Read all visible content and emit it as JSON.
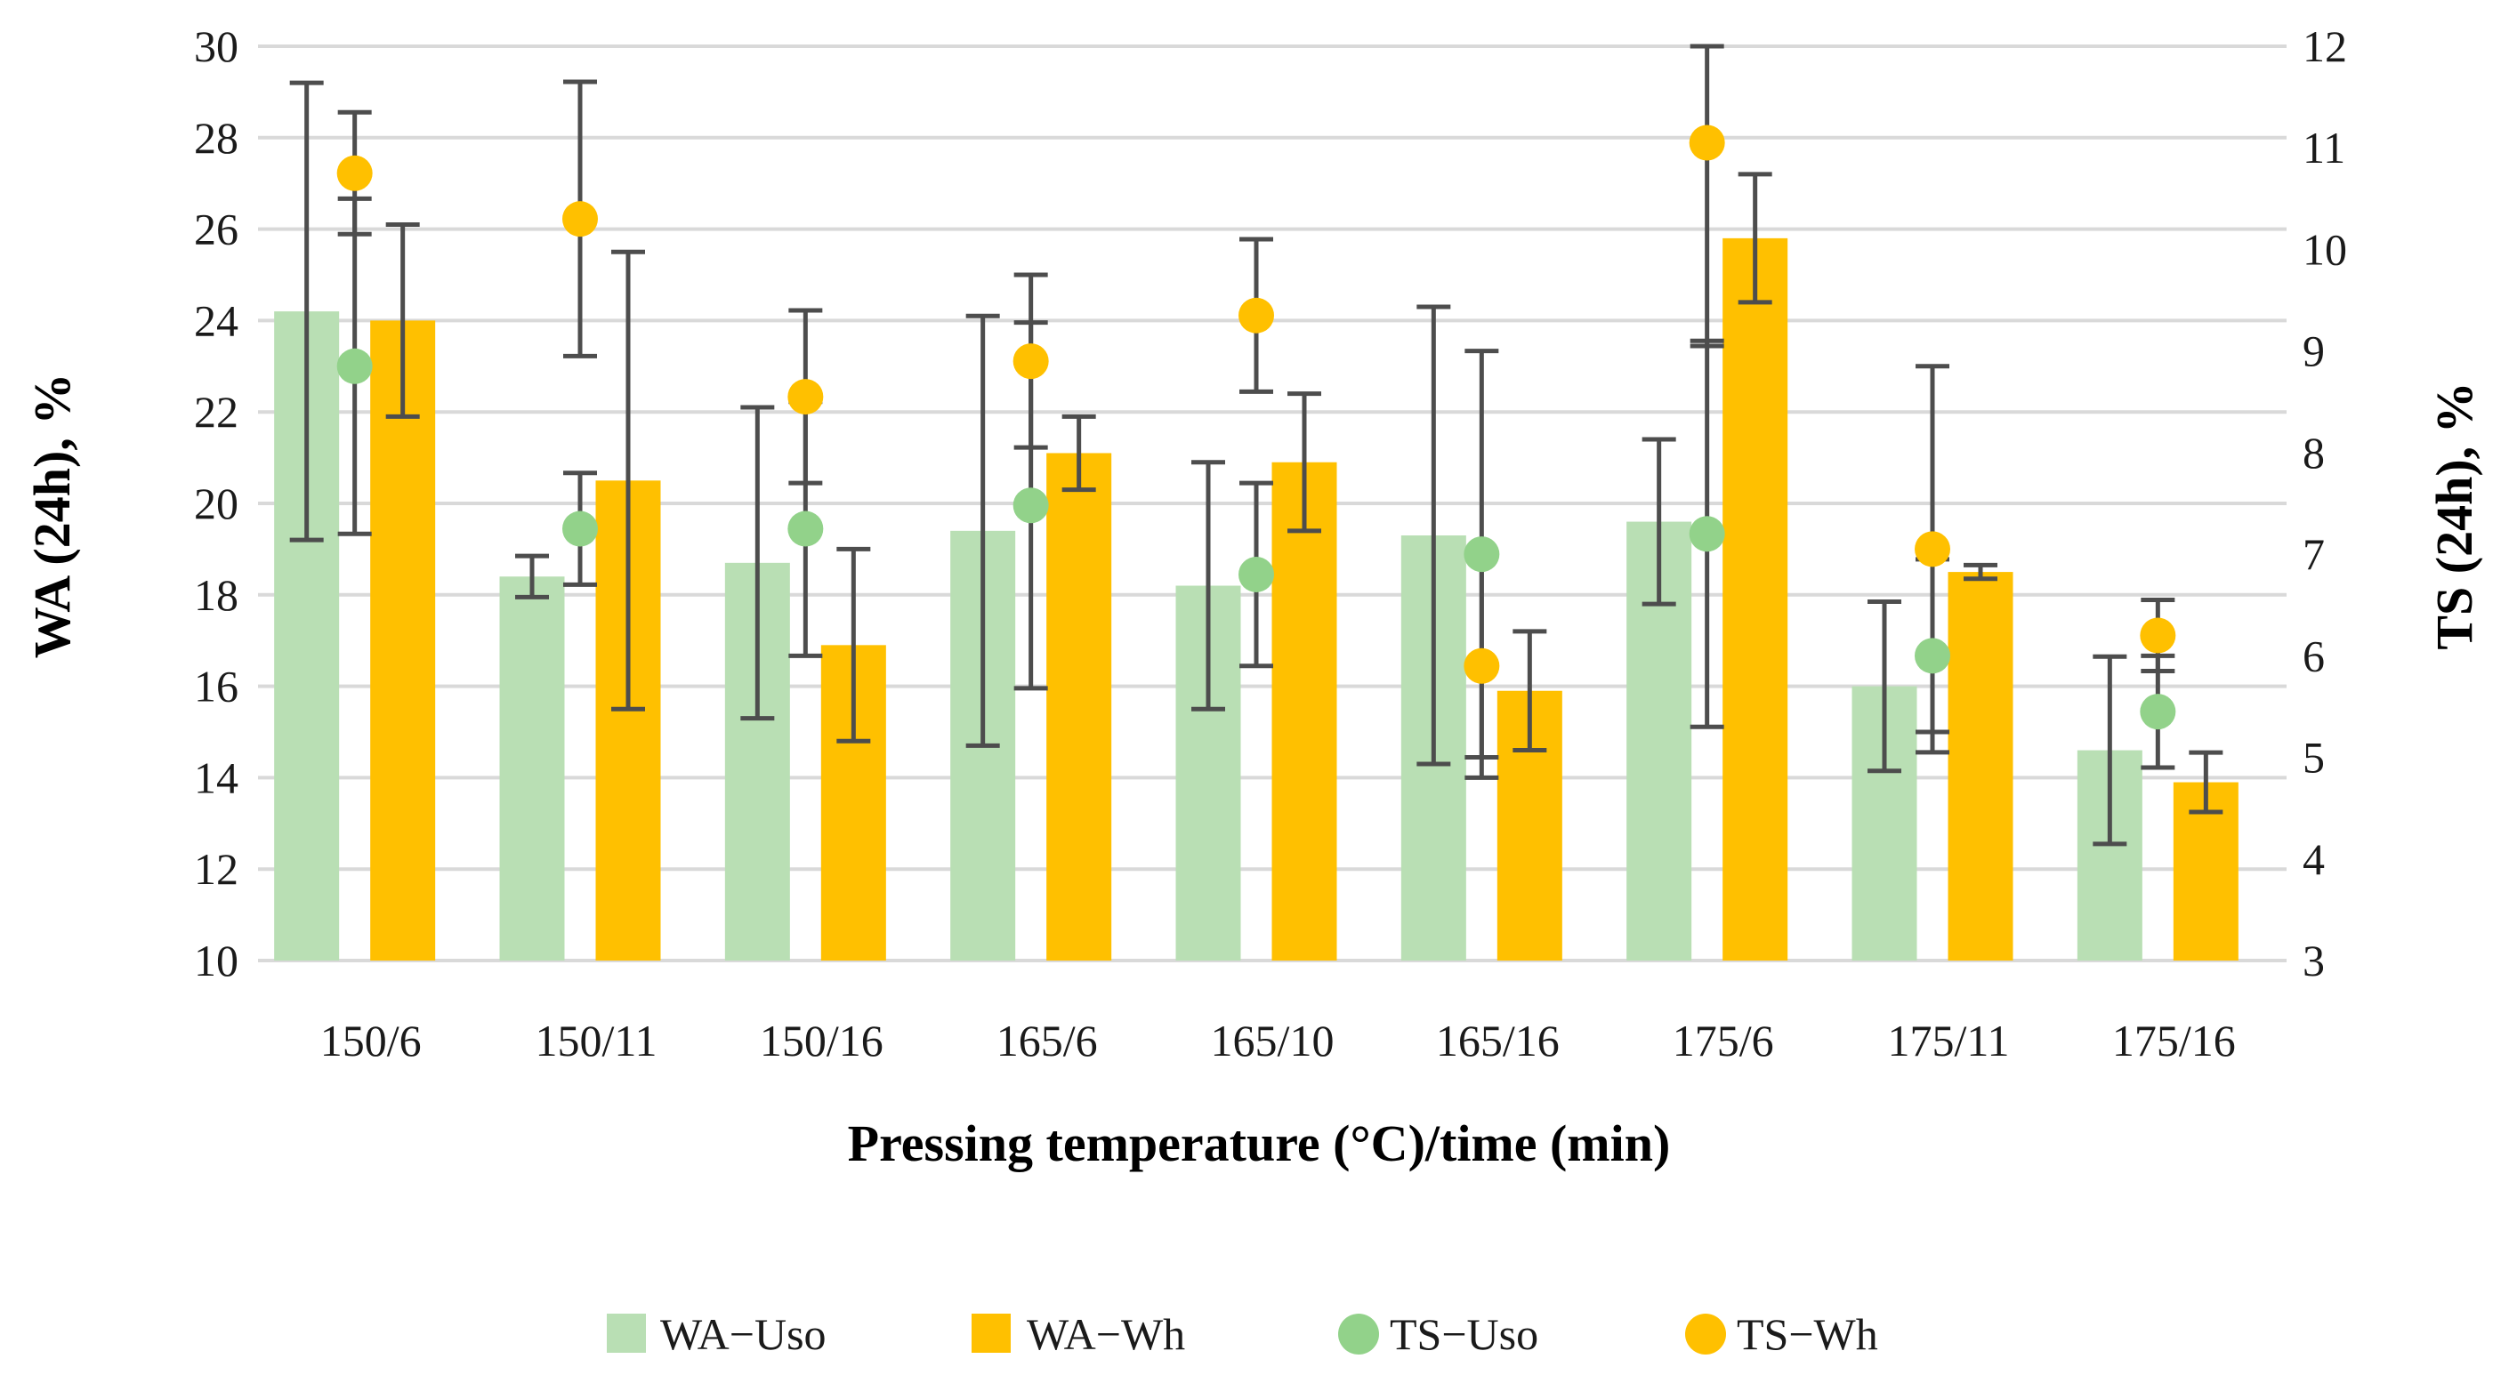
{
  "colors": {
    "wa_uso": "#b9dfb4",
    "wa_wh": "#ffc000",
    "ts_uso": "#92d28a",
    "ts_wh": "#ffc000",
    "error_bar": "#4d4d4d",
    "grid": "#d9d9d9"
  },
  "chart_data": {
    "type": "bar",
    "categories": [
      "150/6",
      "150/11",
      "150/16",
      "165/6",
      "165/10",
      "165/16",
      "175/6",
      "175/11",
      "175/16"
    ],
    "xlabel": "Pressing temperature (°C)/time (min)",
    "ylabel": "WA (24h), %",
    "y2label": "TS (24h), %",
    "ylim": [
      10,
      30
    ],
    "y2lim": [
      3,
      12
    ],
    "yticks": [
      "10",
      "12",
      "14",
      "16",
      "18",
      "20",
      "22",
      "24",
      "26",
      "28",
      "30"
    ],
    "y2ticks": [
      "3",
      "4",
      "5",
      "6",
      "7",
      "8",
      "9",
      "10",
      "11",
      "12"
    ],
    "grid": true,
    "legend_position": "bottom",
    "series": [
      {
        "name": "WA−Uso",
        "kind": "bar",
        "axis": "left",
        "values": [
          24.2,
          18.4,
          18.7,
          19.4,
          18.2,
          19.3,
          19.6,
          16.0,
          14.6
        ],
        "errors": [
          5.0,
          0.45,
          3.4,
          4.7,
          2.7,
          5.0,
          1.8,
          1.85,
          2.05
        ]
      },
      {
        "name": "WA−Wh",
        "kind": "bar",
        "axis": "left",
        "values": [
          24.0,
          20.5,
          16.9,
          21.1,
          20.9,
          15.9,
          25.8,
          18.5,
          13.9
        ],
        "errors": [
          2.1,
          5.0,
          2.1,
          0.8,
          1.5,
          1.3,
          1.4,
          0.15,
          0.65
        ]
      },
      {
        "name": "TS−Uso",
        "kind": "point",
        "axis": "right",
        "values": [
          8.85,
          7.25,
          7.25,
          7.48,
          6.8,
          7.0,
          7.2,
          6.0,
          5.45
        ],
        "errors": [
          1.65,
          0.55,
          1.25,
          1.8,
          0.9,
          2.0,
          1.9,
          0.95,
          0.55
        ]
      },
      {
        "name": "TS−Wh",
        "kind": "point",
        "axis": "right",
        "values": [
          10.75,
          10.3,
          8.55,
          8.9,
          9.35,
          5.9,
          11.05,
          7.05,
          6.2
        ],
        "errors": [
          0.6,
          1.35,
          0.85,
          0.85,
          0.75,
          1.1,
          2.0,
          1.8,
          0.35
        ]
      }
    ]
  }
}
